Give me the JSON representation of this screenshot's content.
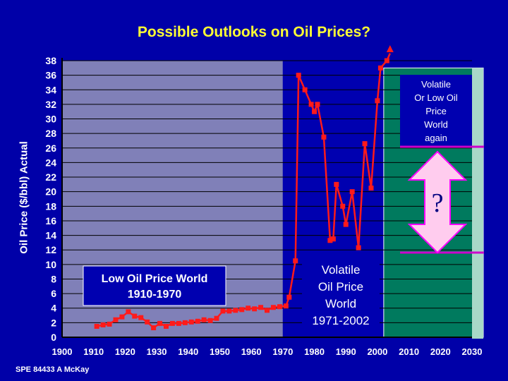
{
  "chart_data": {
    "type": "line",
    "title": "Possible Outlooks on Oil Prices?",
    "xlabel": "",
    "ylabel": "Oil Price ($/bbl) Actual",
    "xlim": [
      1900,
      2030
    ],
    "ylim": [
      0,
      38
    ],
    "x_ticks": [
      "1900",
      "1910",
      "1920",
      "1930",
      "1940",
      "1950",
      "1960",
      "1970",
      "1980",
      "1990",
      "2000",
      "2010",
      "2020",
      "2030"
    ],
    "y_ticks": [
      "0",
      "2",
      "4",
      "6",
      "8",
      "10",
      "12",
      "14",
      "16",
      "18",
      "20",
      "22",
      "24",
      "26",
      "28",
      "30",
      "32",
      "34",
      "36",
      "38"
    ],
    "grid": true,
    "series_color": "#ff1a1a",
    "series": [
      {
        "x": [
          1911,
          1913,
          1915,
          1917,
          1919,
          1921,
          1923,
          1925,
          1927,
          1929,
          1931,
          1933,
          1935,
          1937,
          1939,
          1941,
          1943,
          1945,
          1947,
          1949,
          1951,
          1953,
          1955,
          1957,
          1959,
          1961,
          1963,
          1965,
          1967,
          1969,
          1971,
          1972,
          1974,
          1975,
          1977,
          1979,
          1980,
          1981,
          1983,
          1985,
          1986,
          1987,
          1989,
          1990,
          1992,
          1994,
          1996,
          1998,
          2000,
          2001,
          2003,
          2004
        ],
        "y": [
          1.5,
          1.7,
          1.8,
          2.4,
          2.8,
          3.5,
          2.9,
          2.7,
          2.1,
          1.3,
          1.9,
          1.5,
          1.9,
          1.9,
          2.0,
          2.1,
          2.2,
          2.4,
          2.3,
          2.6,
          3.6,
          3.6,
          3.7,
          3.8,
          4.0,
          3.9,
          4.1,
          3.7,
          4.1,
          4.2,
          4.3,
          5.5,
          10.5,
          36,
          34,
          32,
          31,
          32,
          27.5,
          13.3,
          13.5,
          21,
          18,
          15.5,
          20,
          12.3,
          26.6,
          20.5,
          32.5,
          37,
          38,
          39
        ]
      }
    ],
    "annotations": {
      "low_oil": {
        "line1": "Low Oil Price World",
        "line2": "1910-1970"
      },
      "volatile": {
        "line1": "Volatile",
        "line2": "Oil Price",
        "line3": "World",
        "line4": "1971-2002"
      },
      "future": {
        "line1": "Volatile",
        "line2": "Or Low Oil",
        "line3": "Price",
        "line4": "World",
        "line5": "again"
      },
      "question": "?"
    },
    "colors": {
      "background": "#0000a8",
      "plot_past": "#8080b8",
      "plot_volatile": "#0000b0",
      "plot_future": "#007a5e",
      "title": "#ffff33",
      "arrow_fill": "#ffccee",
      "arrow_stroke": "#ff00ff",
      "marker_line": "#cc00cc"
    }
  },
  "credit": "SPE 84433  A McKay"
}
